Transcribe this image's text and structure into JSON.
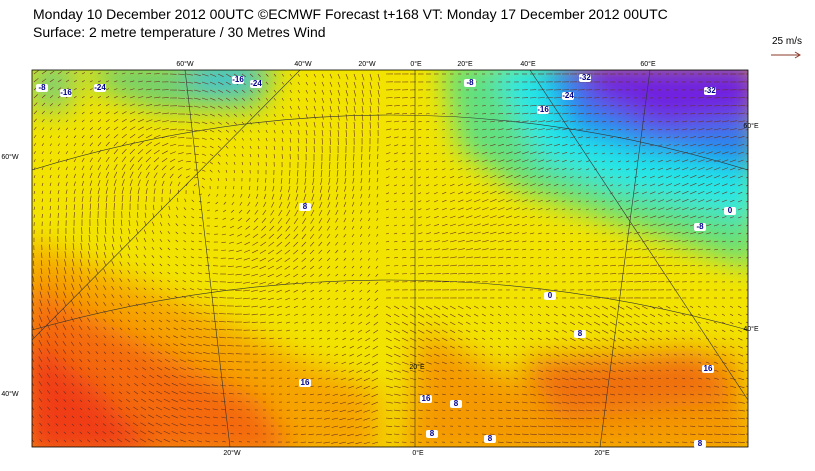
{
  "header": {
    "line1": "Monday 10 December 2012 00UTC ©ECMWF Forecast t+168 VT: Monday 17 December 2012 00UTC",
    "line2": "Surface: 2 metre temperature / 30 Metres Wind"
  },
  "legend": {
    "label": "25 m/s"
  },
  "graticule": {
    "top": [
      "60°W",
      "40°W",
      "20°W",
      "0°E",
      "20°E",
      "40°E",
      "60°E"
    ],
    "left": [
      "60°W",
      "40°W"
    ],
    "bottom": [
      "20°W",
      "0°E",
      "20°E"
    ],
    "right": [
      "60°E",
      "40°E"
    ],
    "inner": [
      "20°E"
    ]
  },
  "contours": [
    "-8",
    "-16",
    "-24",
    "-16",
    "8",
    "16",
    "-8",
    "-24",
    "-32",
    "-16",
    "-32",
    "-24",
    "0",
    "-8",
    "0",
    "8",
    "16",
    "16",
    "8",
    "8",
    "8",
    "8"
  ]
}
